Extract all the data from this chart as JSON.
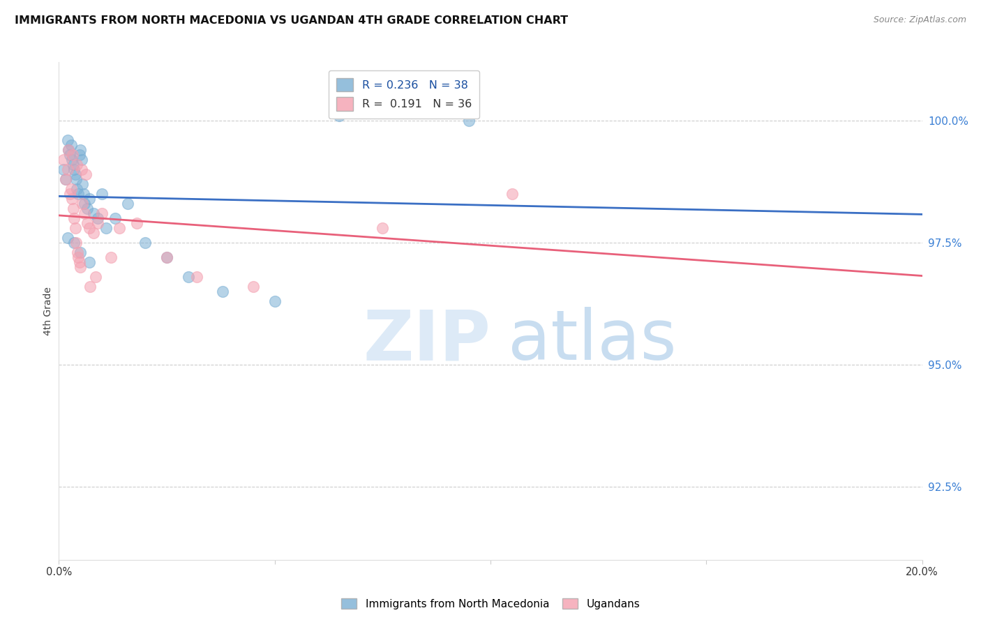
{
  "title": "IMMIGRANTS FROM NORTH MACEDONIA VS UGANDAN 4TH GRADE CORRELATION CHART",
  "source": "Source: ZipAtlas.com",
  "ylabel": "4th Grade",
  "ytick_values": [
    92.5,
    95.0,
    97.5,
    100.0
  ],
  "xlim": [
    0.0,
    20.0
  ],
  "ylim": [
    91.0,
    101.2
  ],
  "blue_R": 0.236,
  "blue_N": 38,
  "pink_R": 0.191,
  "pink_N": 36,
  "blue_color": "#7bafd4",
  "pink_color": "#f4a0b0",
  "blue_line_color": "#3a6fc4",
  "pink_line_color": "#e8607a",
  "blue_x": [
    0.1,
    0.15,
    0.2,
    0.22,
    0.25,
    0.28,
    0.3,
    0.33,
    0.35,
    0.38,
    0.4,
    0.42,
    0.45,
    0.48,
    0.5,
    0.53,
    0.55,
    0.58,
    0.6,
    0.65,
    0.7,
    0.8,
    0.9,
    1.0,
    1.1,
    1.3,
    1.6,
    2.0,
    2.5,
    3.0,
    3.8,
    5.0,
    9.5,
    0.2,
    0.35,
    0.5,
    0.7,
    6.5
  ],
  "blue_y": [
    99.0,
    98.8,
    99.6,
    99.4,
    99.3,
    99.5,
    99.2,
    99.1,
    99.0,
    98.9,
    98.8,
    98.6,
    98.5,
    99.3,
    99.4,
    99.2,
    98.7,
    98.5,
    98.3,
    98.2,
    98.4,
    98.1,
    98.0,
    98.5,
    97.8,
    98.0,
    98.3,
    97.5,
    97.2,
    96.8,
    96.5,
    96.3,
    100.0,
    97.6,
    97.5,
    97.3,
    97.1,
    100.1
  ],
  "pink_x": [
    0.1,
    0.15,
    0.2,
    0.25,
    0.28,
    0.3,
    0.33,
    0.35,
    0.38,
    0.4,
    0.43,
    0.45,
    0.48,
    0.5,
    0.55,
    0.6,
    0.65,
    0.7,
    0.8,
    0.9,
    1.0,
    1.2,
    1.4,
    1.8,
    2.5,
    3.2,
    4.5,
    7.5,
    10.5,
    0.22,
    0.32,
    0.42,
    0.52,
    0.62,
    0.72,
    0.85
  ],
  "pink_y": [
    99.2,
    98.8,
    99.0,
    98.5,
    98.6,
    98.4,
    98.2,
    98.0,
    97.8,
    97.5,
    97.3,
    97.2,
    97.1,
    97.0,
    98.3,
    98.1,
    97.9,
    97.8,
    97.7,
    97.9,
    98.1,
    97.2,
    97.8,
    97.9,
    97.2,
    96.8,
    96.6,
    97.8,
    98.5,
    99.4,
    99.3,
    99.1,
    99.0,
    98.9,
    96.6,
    96.8
  ]
}
